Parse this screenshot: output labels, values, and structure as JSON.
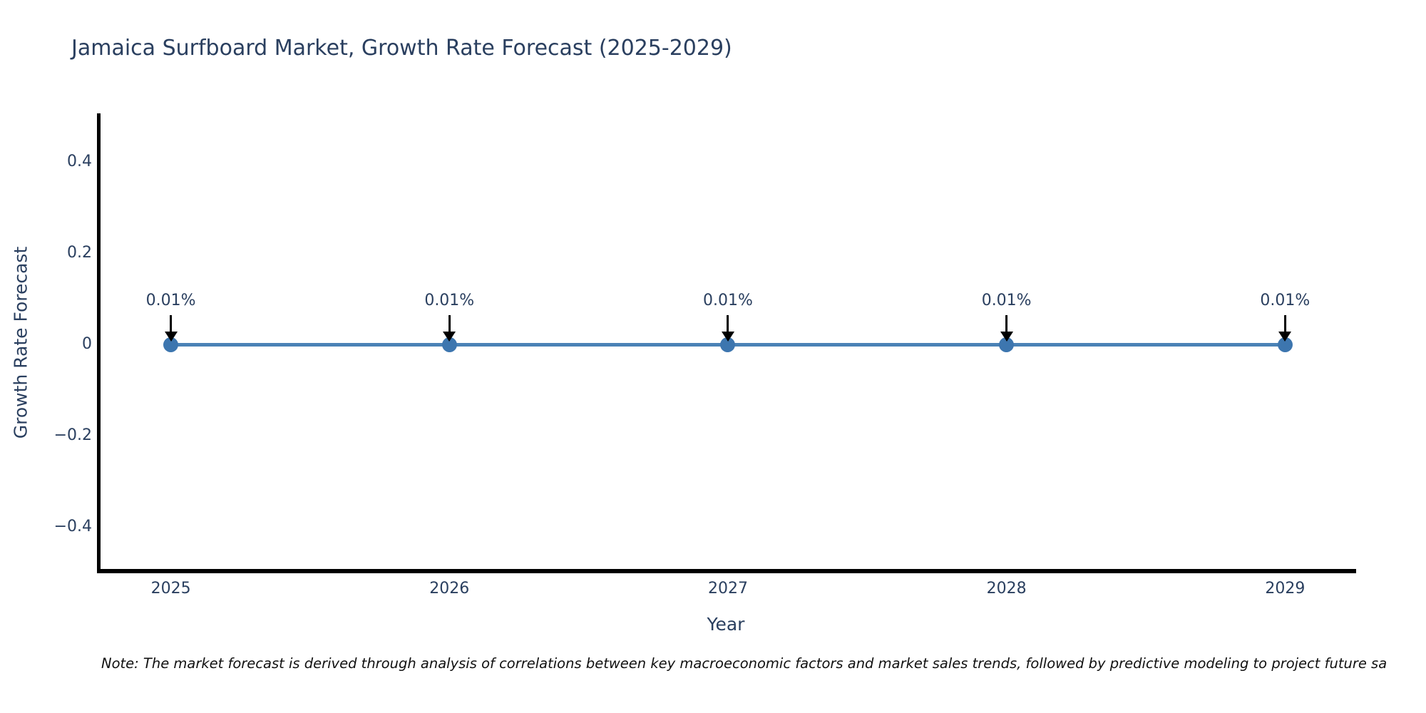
{
  "title": "Jamaica Surfboard Market, Growth Rate Forecast (2025-2029)",
  "note": "Note: The market forecast is derived through analysis of correlations between key macroeconomic factors and market sales trends, followed by predictive modeling to project future sa",
  "chart_data": {
    "type": "line",
    "title": "Jamaica Surfboard Market, Growth Rate Forecast (2025-2029)",
    "xlabel": "Year",
    "ylabel": "Growth Rate Forecast",
    "x": [
      2025,
      2026,
      2027,
      2028,
      2029
    ],
    "x_tick_labels": [
      "2025",
      "2026",
      "2027",
      "2028",
      "2029"
    ],
    "series": [
      {
        "name": "Growth Rate Forecast",
        "values": [
          0.0001,
          0.0001,
          0.0001,
          0.0001,
          0.0001
        ],
        "point_labels": [
          "0.01%",
          "0.01%",
          "0.01%",
          "0.01%",
          "0.01%"
        ]
      }
    ],
    "y_ticks": [
      {
        "value": 0.4,
        "label": "0.4"
      },
      {
        "value": 0.2,
        "label": "0.2"
      },
      {
        "value": 0,
        "label": "0"
      },
      {
        "value": -0.2,
        "label": "−0.2"
      },
      {
        "value": -0.4,
        "label": "−0.4"
      }
    ],
    "ylim": [
      -0.4965,
      0.5065
    ],
    "xlim": [
      2024.74,
      2029.25
    ],
    "grid": false,
    "legend": false,
    "annotation_arrows": "down-to-point",
    "colors": {
      "line": "#4a82b6",
      "marker": "#3d76af",
      "axis_line": "#000000",
      "chart_text": "#2a3f5f",
      "note_text": "#111111",
      "background": "#ffffff"
    }
  }
}
